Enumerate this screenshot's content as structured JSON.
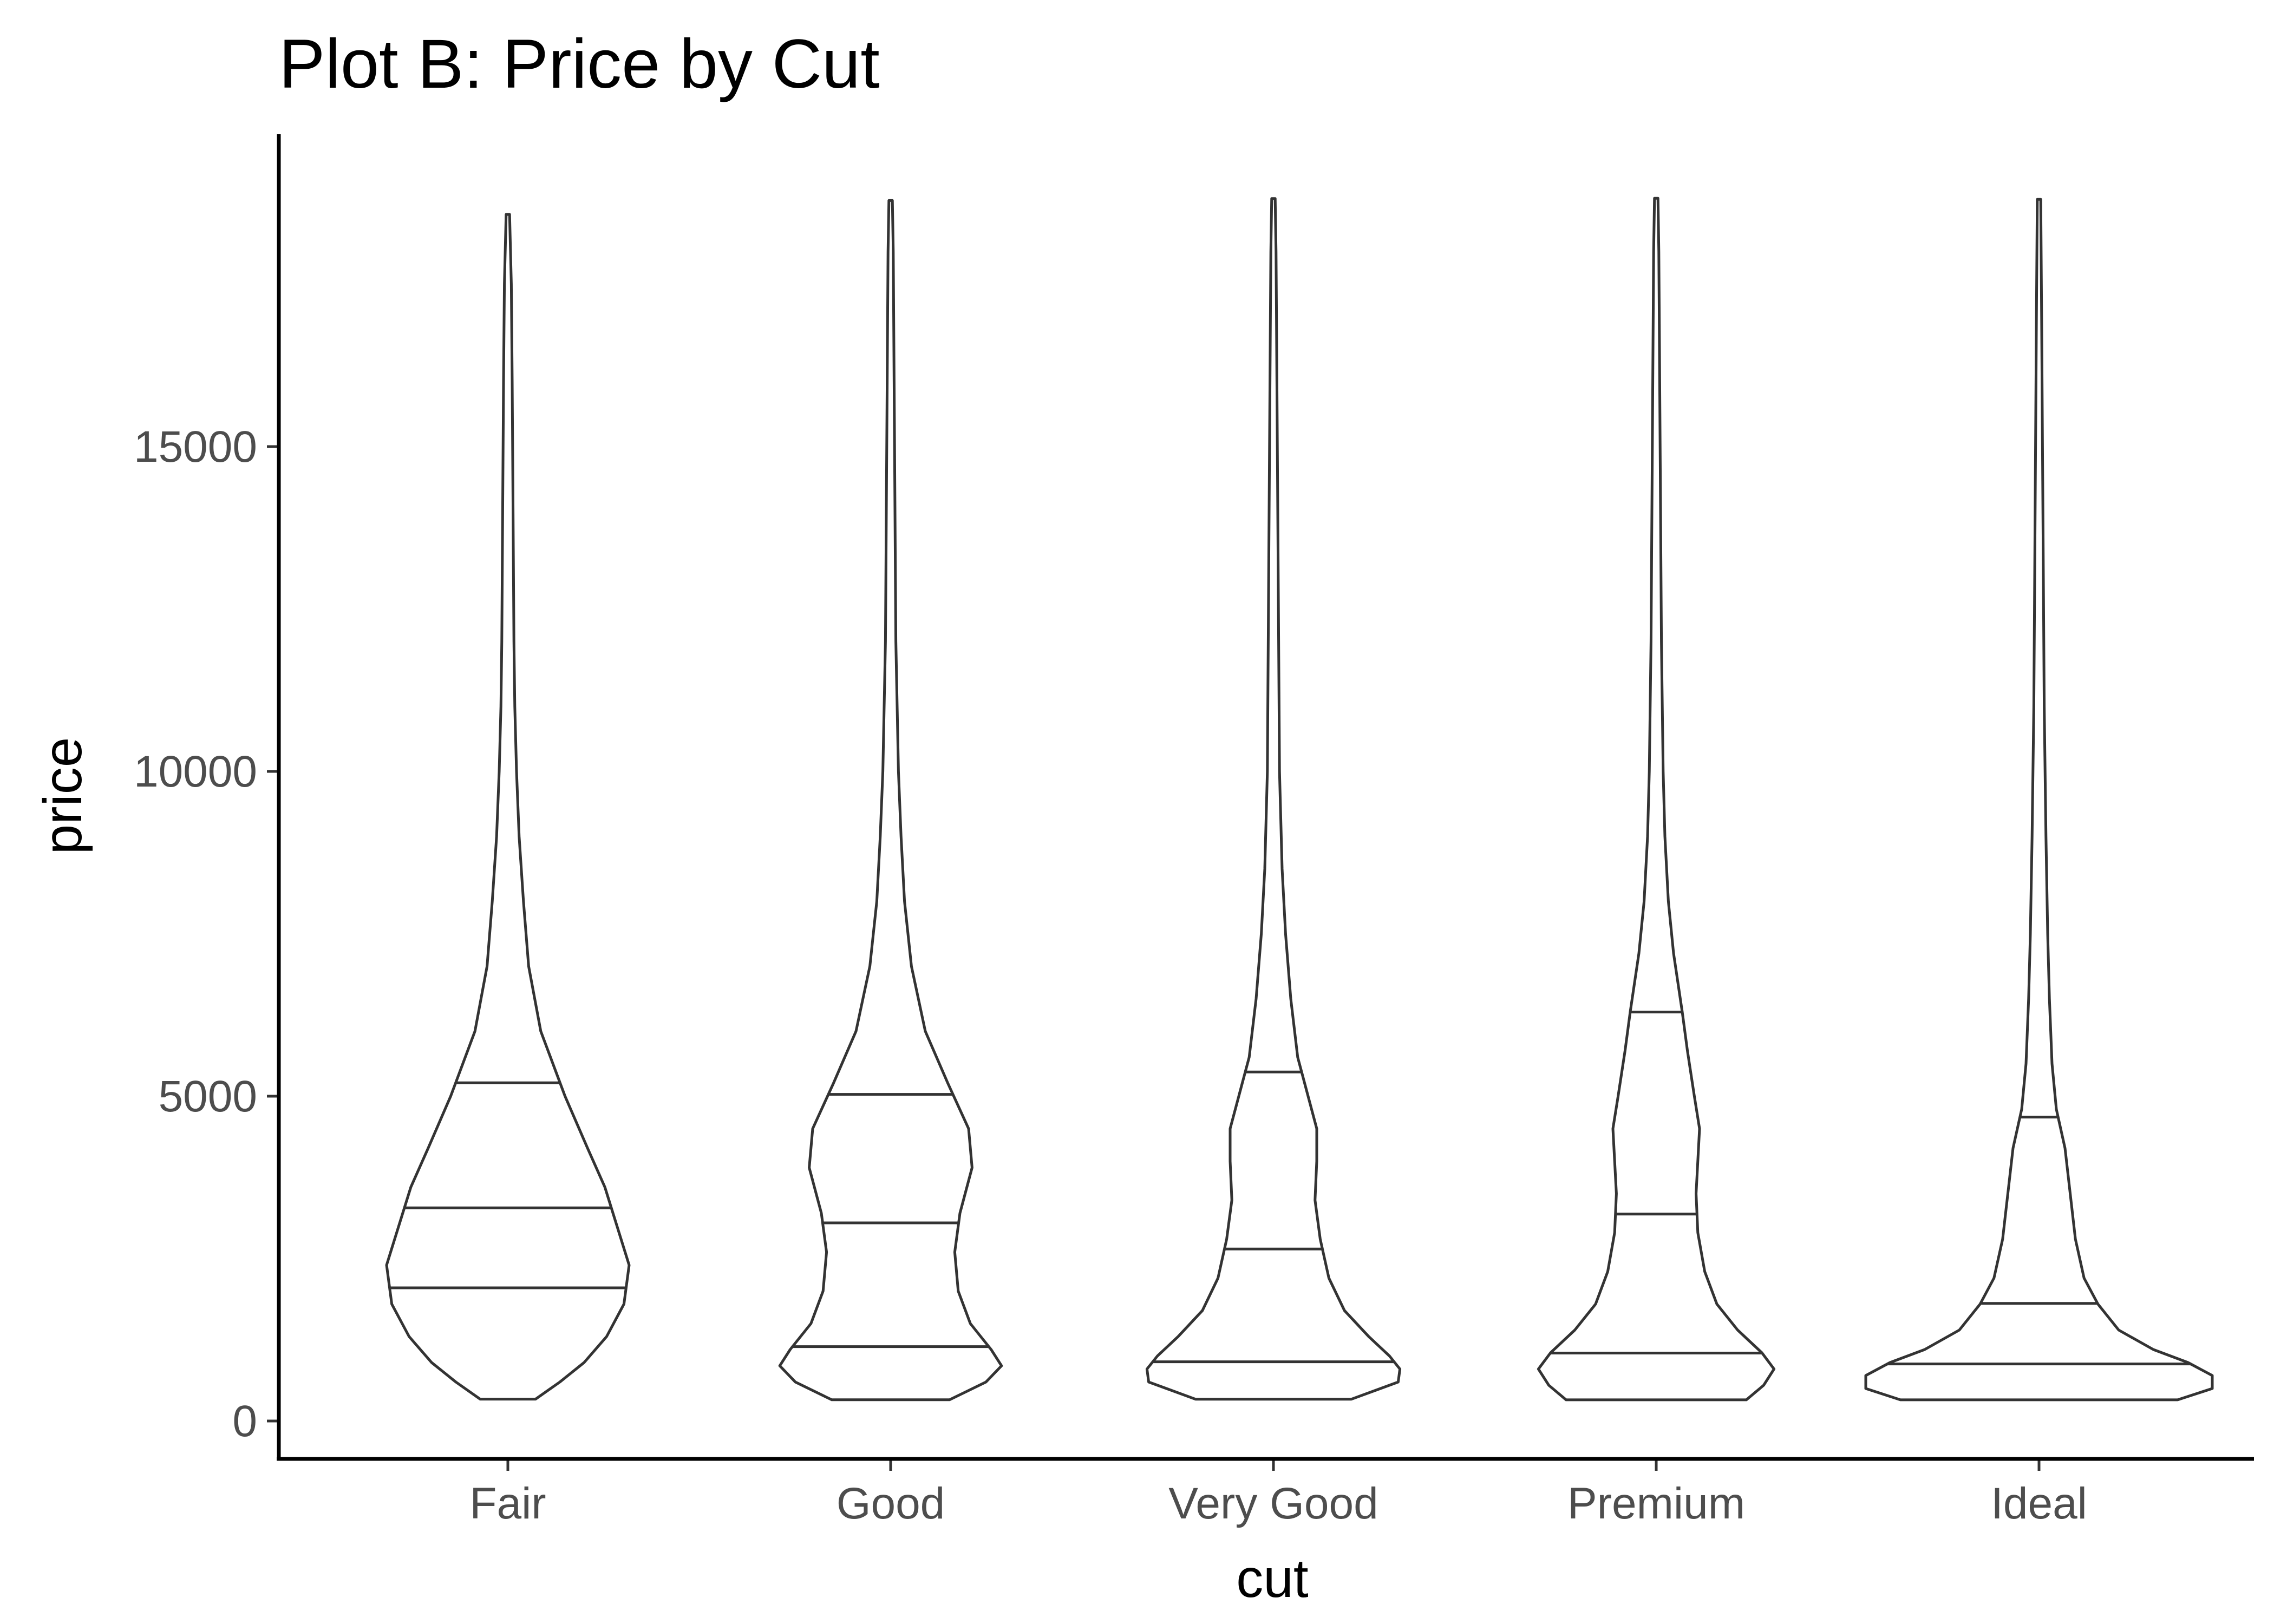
{
  "chart_data": {
    "type": "violin",
    "title": "Plot B: Price by Cut",
    "xlabel": "cut",
    "ylabel": "price",
    "categories": [
      "Fair",
      "Good",
      "Very Good",
      "Premium",
      "Ideal"
    ],
    "ylim": [
      -600,
      19700
    ],
    "yticks": [
      0,
      5000,
      10000,
      15000
    ],
    "ytick_labels": [
      "0",
      "5000",
      "10000",
      "15000"
    ],
    "grid": false,
    "legend": "none",
    "quantiles": [
      "25%",
      "50%",
      "75%"
    ],
    "violins": [
      {
        "category": "Fair",
        "min": 337,
        "max": 18574,
        "q25": 2050,
        "q50": 3282,
        "q75": 5206,
        "density": [
          [
            337,
            0.16
          ],
          [
            600,
            0.3
          ],
          [
            900,
            0.44
          ],
          [
            1300,
            0.57
          ],
          [
            1800,
            0.67
          ],
          [
            2400,
            0.7
          ],
          [
            3000,
            0.63
          ],
          [
            3600,
            0.56
          ],
          [
            4200,
            0.46
          ],
          [
            5000,
            0.33
          ],
          [
            6000,
            0.19
          ],
          [
            7000,
            0.12
          ],
          [
            8000,
            0.09
          ],
          [
            9000,
            0.065
          ],
          [
            10000,
            0.05
          ],
          [
            11000,
            0.04
          ],
          [
            12000,
            0.035
          ],
          [
            14000,
            0.03
          ],
          [
            16000,
            0.025
          ],
          [
            17500,
            0.02
          ],
          [
            18574,
            0.01
          ]
        ]
      },
      {
        "category": "Good",
        "min": 327,
        "max": 18788,
        "q25": 1145,
        "q50": 3050,
        "q75": 5028,
        "density": [
          [
            327,
            0.34
          ],
          [
            600,
            0.55
          ],
          [
            850,
            0.64
          ],
          [
            1100,
            0.58
          ],
          [
            1500,
            0.46
          ],
          [
            2000,
            0.39
          ],
          [
            2600,
            0.37
          ],
          [
            3200,
            0.4
          ],
          [
            3900,
            0.47
          ],
          [
            4500,
            0.45
          ],
          [
            5200,
            0.33
          ],
          [
            6000,
            0.2
          ],
          [
            7000,
            0.12
          ],
          [
            8000,
            0.08
          ],
          [
            9000,
            0.06
          ],
          [
            10000,
            0.045
          ],
          [
            12000,
            0.03
          ],
          [
            14000,
            0.025
          ],
          [
            16000,
            0.02
          ],
          [
            18000,
            0.015
          ],
          [
            18788,
            0.01
          ]
        ]
      },
      {
        "category": "Very Good",
        "min": 336,
        "max": 18818,
        "q25": 912,
        "q50": 2648,
        "q75": 5373,
        "density": [
          [
            336,
            0.45
          ],
          [
            600,
            0.72
          ],
          [
            800,
            0.73
          ],
          [
            1000,
            0.67
          ],
          [
            1300,
            0.55
          ],
          [
            1700,
            0.41
          ],
          [
            2200,
            0.32
          ],
          [
            2800,
            0.27
          ],
          [
            3400,
            0.24
          ],
          [
            4000,
            0.25
          ],
          [
            4500,
            0.25
          ],
          [
            5000,
            0.2
          ],
          [
            5600,
            0.14
          ],
          [
            6500,
            0.1
          ],
          [
            7500,
            0.07
          ],
          [
            8500,
            0.05
          ],
          [
            10000,
            0.035
          ],
          [
            12000,
            0.03
          ],
          [
            14000,
            0.025
          ],
          [
            16000,
            0.02
          ],
          [
            18000,
            0.015
          ],
          [
            18818,
            0.01
          ]
        ]
      },
      {
        "category": "Premium",
        "min": 326,
        "max": 18823,
        "q25": 1046,
        "q50": 3185,
        "q75": 6296,
        "density": [
          [
            326,
            0.52
          ],
          [
            550,
            0.62
          ],
          [
            800,
            0.68
          ],
          [
            1050,
            0.61
          ],
          [
            1400,
            0.47
          ],
          [
            1800,
            0.35
          ],
          [
            2300,
            0.28
          ],
          [
            2900,
            0.24
          ],
          [
            3500,
            0.23
          ],
          [
            4000,
            0.24
          ],
          [
            4500,
            0.25
          ],
          [
            5000,
            0.22
          ],
          [
            5700,
            0.18
          ],
          [
            6300,
            0.15
          ],
          [
            7200,
            0.1
          ],
          [
            8000,
            0.07
          ],
          [
            9000,
            0.05
          ],
          [
            10000,
            0.04
          ],
          [
            12000,
            0.03
          ],
          [
            14000,
            0.025
          ],
          [
            16000,
            0.02
          ],
          [
            18000,
            0.015
          ],
          [
            18823,
            0.01
          ]
        ]
      },
      {
        "category": "Ideal",
        "min": 326,
        "max": 18806,
        "q25": 878,
        "q50": 1810,
        "q75": 4678,
        "density": [
          [
            326,
            0.8
          ],
          [
            500,
            1.0
          ],
          [
            700,
            1.0
          ],
          [
            900,
            0.86
          ],
          [
            1100,
            0.66
          ],
          [
            1400,
            0.46
          ],
          [
            1800,
            0.34
          ],
          [
            2200,
            0.26
          ],
          [
            2800,
            0.21
          ],
          [
            3500,
            0.18
          ],
          [
            4200,
            0.15
          ],
          [
            4800,
            0.1
          ],
          [
            5500,
            0.075
          ],
          [
            6500,
            0.06
          ],
          [
            7500,
            0.05
          ],
          [
            9000,
            0.04
          ],
          [
            11000,
            0.03
          ],
          [
            13000,
            0.025
          ],
          [
            15000,
            0.02
          ],
          [
            17000,
            0.015
          ],
          [
            18806,
            0.01
          ]
        ]
      }
    ]
  }
}
